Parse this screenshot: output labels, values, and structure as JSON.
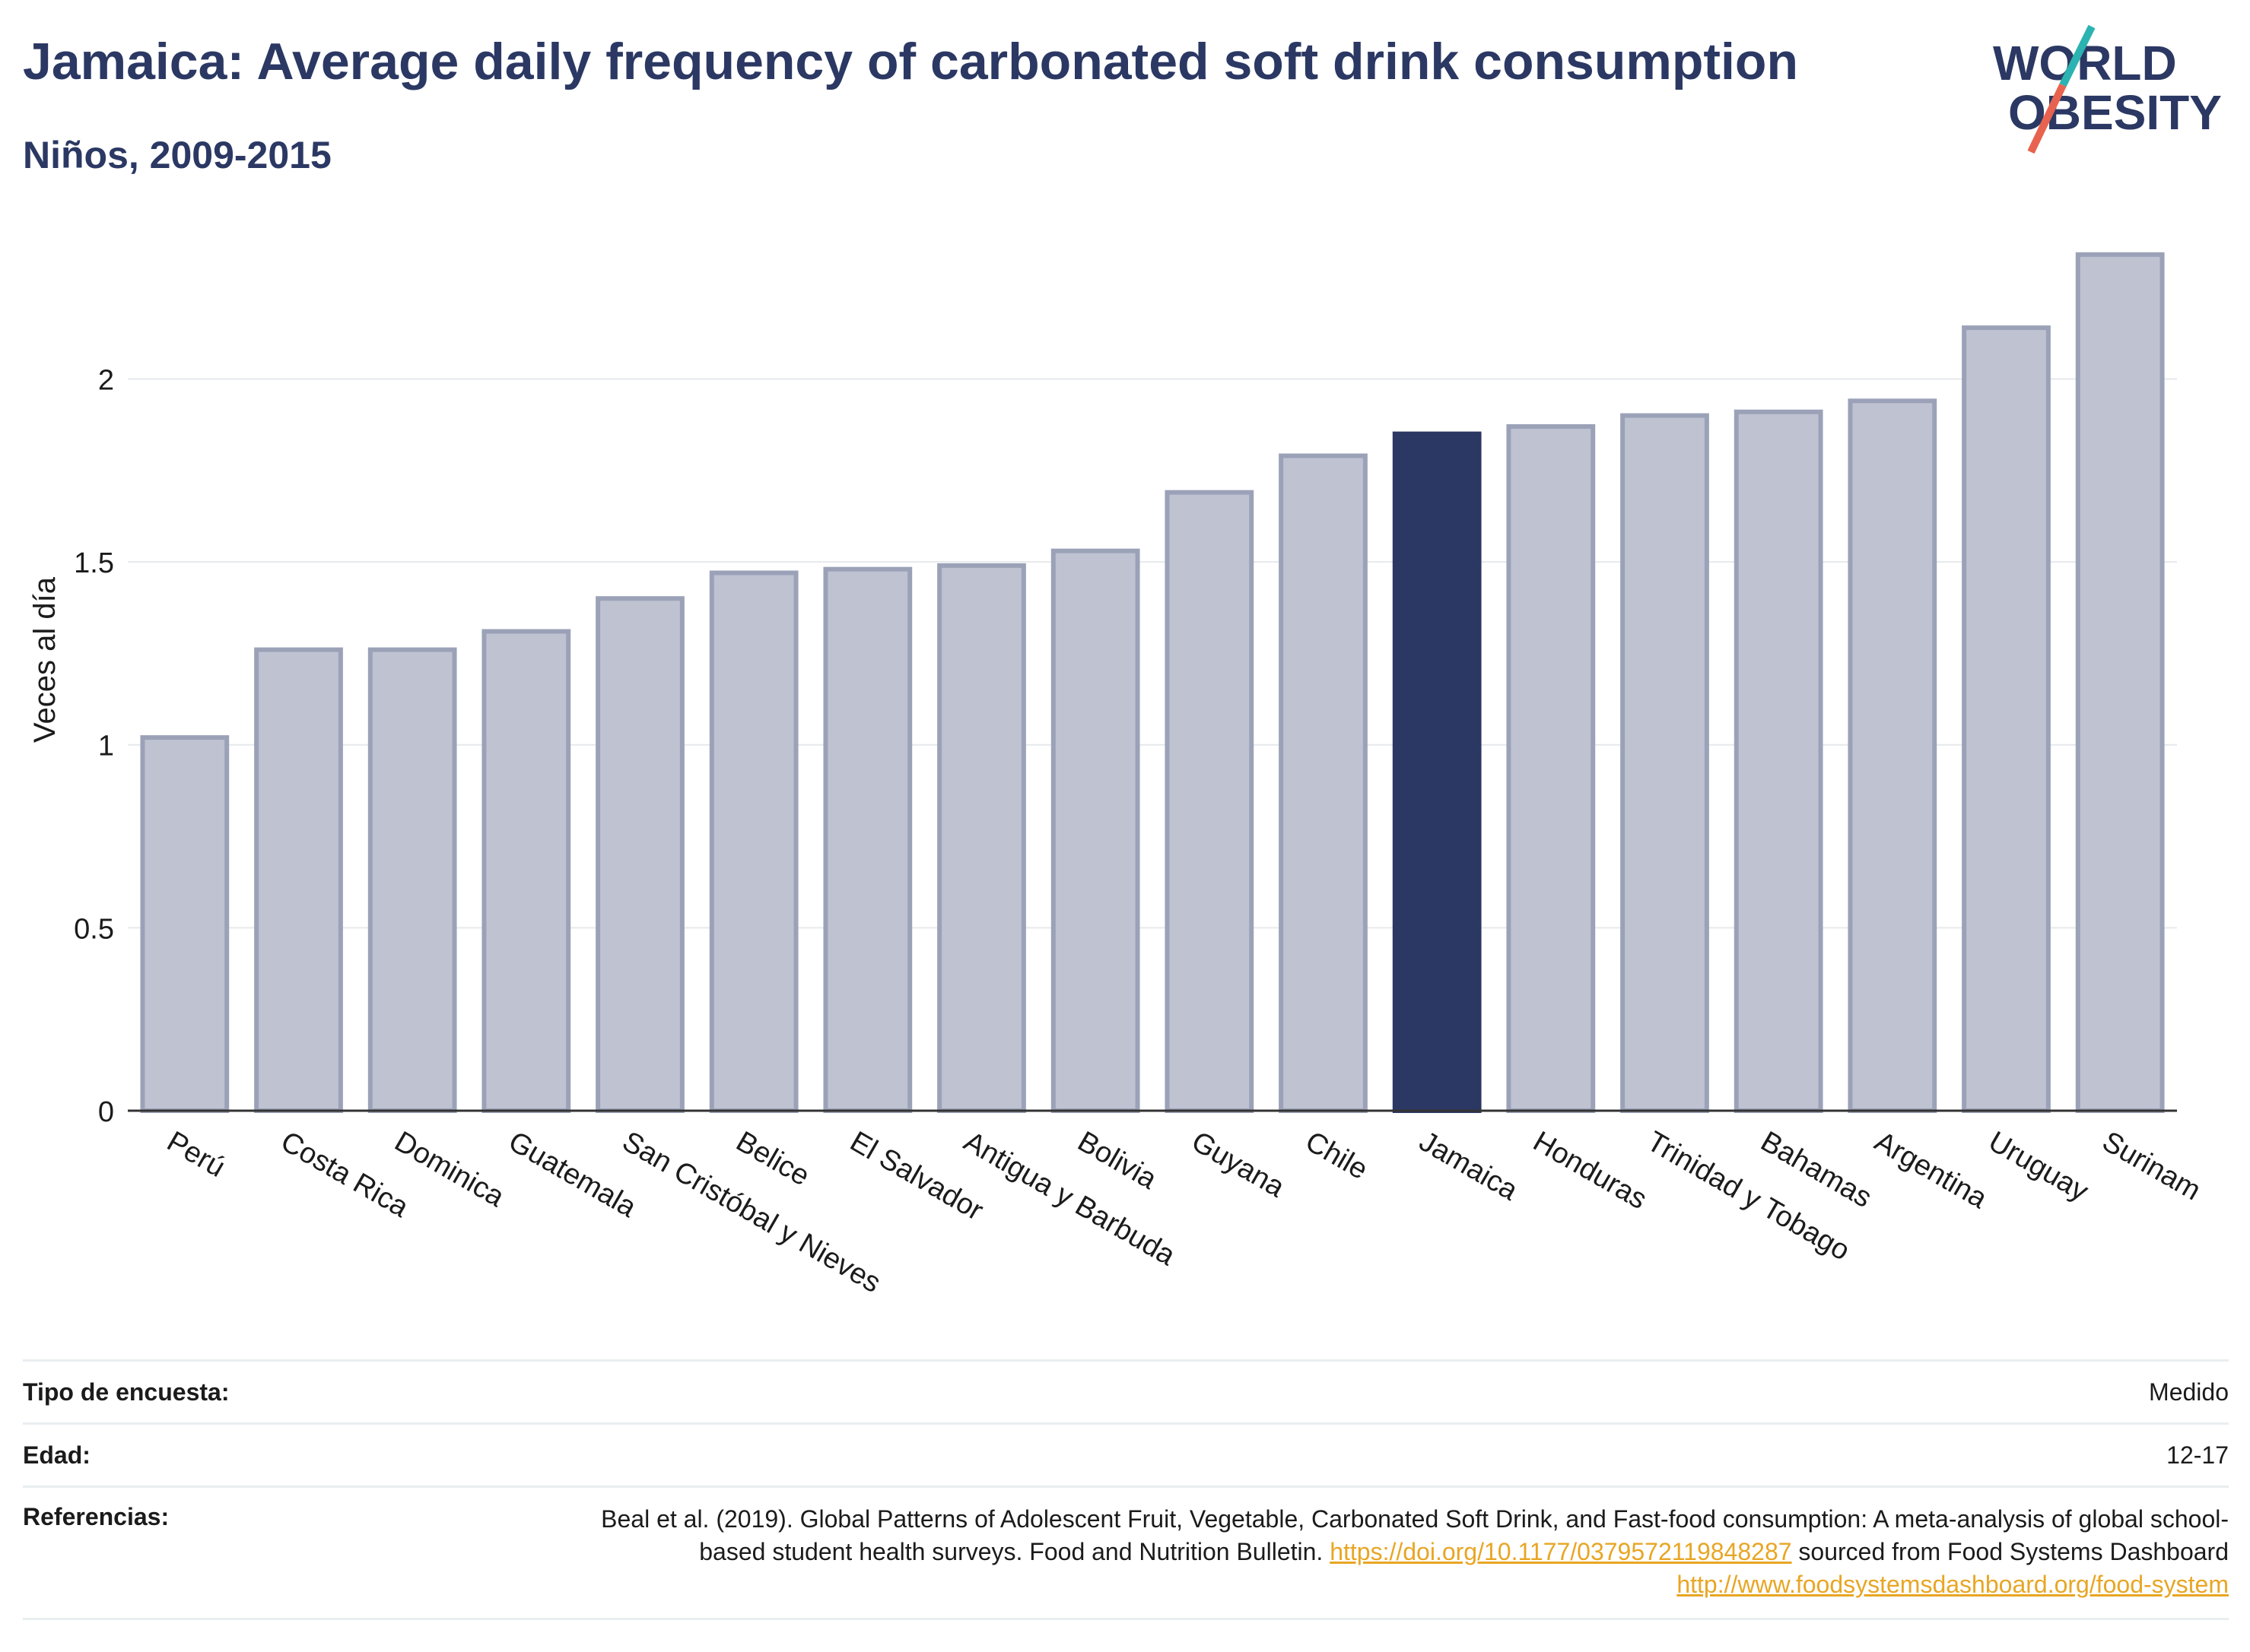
{
  "header": {
    "title": "Jamaica: Average daily frequency of carbonated soft drink consumption",
    "subtitle": "Niños, 2009-2015",
    "logo_line1": "WORLD",
    "logo_line2": "OBESITY"
  },
  "chart_data": {
    "type": "bar",
    "title": "Jamaica: Average daily frequency of carbonated soft drink consumption",
    "subtitle": "Niños, 2009-2015",
    "xlabel": "",
    "ylabel": "Veces al día",
    "ylim": [
      0,
      2.35
    ],
    "yticks": [
      0,
      0.5,
      1,
      1.5,
      2
    ],
    "ytick_labels": [
      "0",
      "0.5",
      "1",
      "1.5",
      "2"
    ],
    "grid": true,
    "categories": [
      "Perú",
      "Costa Rica",
      "Dominica",
      "Guatemala",
      "San Cristóbal y Nieves",
      "Belice",
      "El Salvador",
      "Antigua y Barbuda",
      "Bolivia",
      "Guyana",
      "Chile",
      "Jamaica",
      "Honduras",
      "Trinidad y Tobago",
      "Bahamas",
      "Argentina",
      "Uruguay",
      "Surinam"
    ],
    "values": [
      1.02,
      1.26,
      1.26,
      1.31,
      1.4,
      1.47,
      1.48,
      1.49,
      1.53,
      1.69,
      1.79,
      1.85,
      1.87,
      1.9,
      1.91,
      1.94,
      2.14,
      2.34
    ],
    "highlight": "Jamaica",
    "colors": {
      "bar": "#bfc2d1",
      "bar_edge": "#9ba2b8",
      "highlight": "#2b3863",
      "grid": "#e6e9ec",
      "axis": "#333333"
    }
  },
  "footer": {
    "rows": [
      {
        "label": "Tipo de encuesta:",
        "value": "Medido"
      },
      {
        "label": "Edad:",
        "value": "12-17"
      }
    ],
    "ref_label": "Referencias:",
    "ref_text1": "Beal et al. (2019). Global Patterns of Adolescent Fruit, Vegetable, Carbonated Soft Drink, and Fast-food consumption: A meta-analysis of global school-based student health surveys. Food and Nutrition Bulletin. ",
    "ref_link1": "https://doi.org/10.1177/0379572119848287",
    "ref_text2": " sourced from Food Systems Dashboard ",
    "ref_link2": "http://www.foodsystemsdashboard.org/food-system"
  }
}
